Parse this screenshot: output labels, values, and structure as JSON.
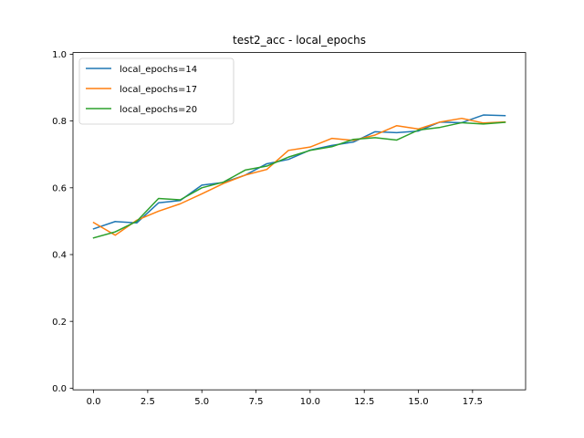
{
  "chart_data": {
    "type": "line",
    "title": "test2_acc - local_epochs",
    "xlabel": "",
    "ylabel": "",
    "xlim": [
      -0.95,
      19.95
    ],
    "ylim": [
      -0.005,
      1.005
    ],
    "xticks": [
      0.0,
      2.5,
      5.0,
      7.5,
      10.0,
      12.5,
      15.0,
      17.5
    ],
    "xtick_labels": [
      "0.0",
      "2.5",
      "5.0",
      "7.5",
      "10.0",
      "12.5",
      "15.0",
      "17.5"
    ],
    "yticks": [
      0.0,
      0.2,
      0.4,
      0.6,
      0.8,
      1.0
    ],
    "ytick_labels": [
      "0.0",
      "0.2",
      "0.4",
      "0.6",
      "0.8",
      "1.0"
    ],
    "grid": false,
    "legend_position": "top-left",
    "x": [
      0,
      1,
      2,
      3,
      4,
      5,
      6,
      7,
      8,
      9,
      10,
      11,
      12,
      13,
      14,
      15,
      16,
      17,
      18,
      19
    ],
    "series": [
      {
        "name": "local_epochs=14",
        "color": "#1f77b4",
        "values": [
          0.477,
          0.499,
          0.495,
          0.555,
          0.562,
          0.608,
          0.616,
          0.638,
          0.672,
          0.685,
          0.713,
          0.727,
          0.737,
          0.768,
          0.765,
          0.77,
          0.797,
          0.795,
          0.818,
          0.816
        ]
      },
      {
        "name": "local_epochs=17",
        "color": "#ff7f0e",
        "values": [
          0.496,
          0.458,
          0.503,
          0.53,
          0.552,
          0.582,
          0.613,
          0.638,
          0.655,
          0.712,
          0.722,
          0.748,
          0.742,
          0.758,
          0.786,
          0.776,
          0.797,
          0.808,
          0.794,
          0.797
        ]
      },
      {
        "name": "local_epochs=20",
        "color": "#2ca02c",
        "values": [
          0.45,
          0.468,
          0.5,
          0.568,
          0.564,
          0.6,
          0.617,
          0.653,
          0.665,
          0.692,
          0.712,
          0.723,
          0.745,
          0.75,
          0.743,
          0.773,
          0.781,
          0.795,
          0.791,
          0.796
        ]
      }
    ]
  }
}
